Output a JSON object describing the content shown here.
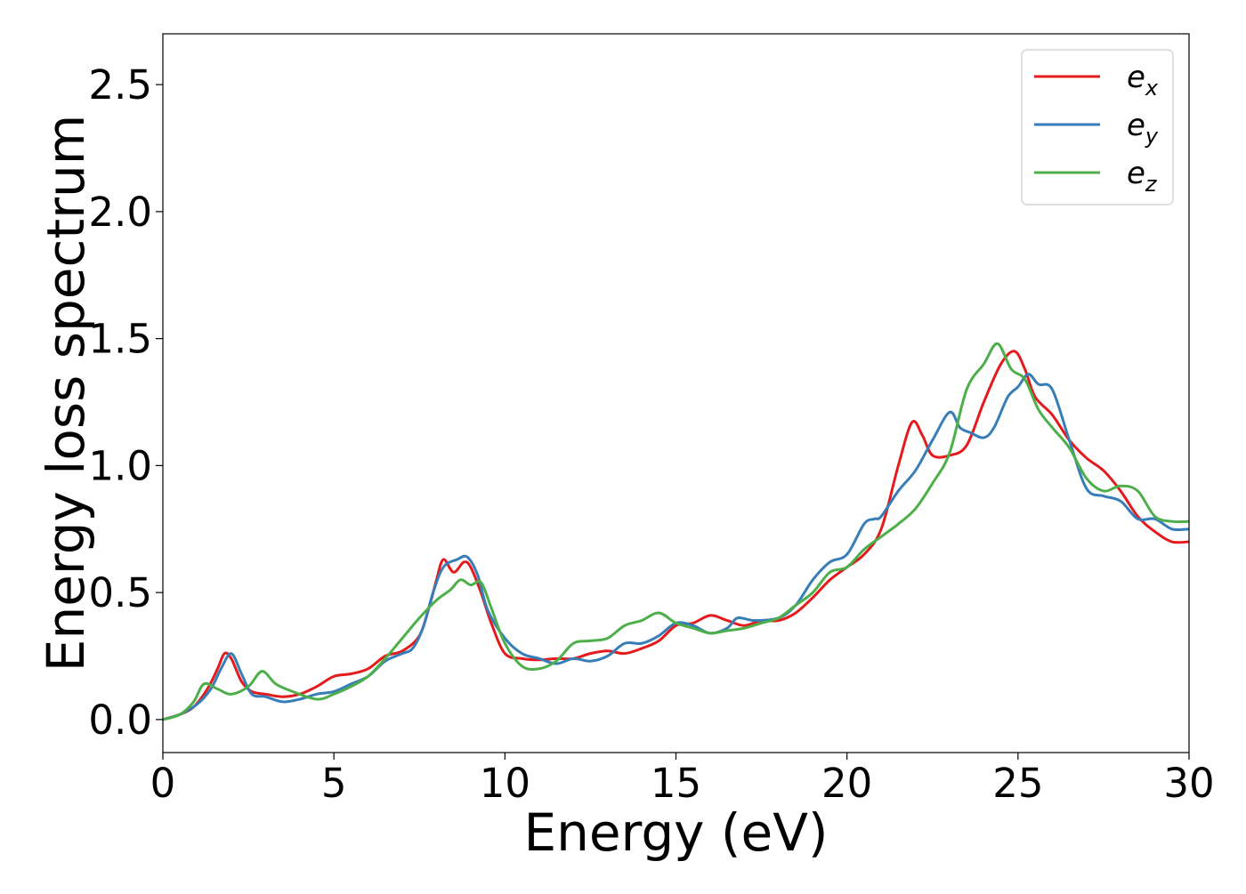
{
  "chart_data": {
    "type": "line",
    "title": "",
    "xlabel": "Energy (eV)",
    "ylabel": "Energy loss spectrum",
    "xlim": [
      0,
      30
    ],
    "ylim": [
      -0.13,
      2.7
    ],
    "xticks": [
      0,
      5,
      10,
      15,
      20,
      25,
      30
    ],
    "xtick_labels": [
      "0",
      "5",
      "10",
      "15",
      "20",
      "25",
      "30"
    ],
    "yticks": [
      0.0,
      0.5,
      1.0,
      1.5,
      2.0,
      2.5
    ],
    "ytick_labels": [
      "0.0",
      "0.5",
      "1.0",
      "1.5",
      "2.0",
      "2.5"
    ],
    "grid": false,
    "legend_position": "top-right",
    "series": [
      {
        "name": "e_x",
        "legend_base": "e",
        "legend_sub": "x",
        "color": "#e41a1c",
        "points": [
          [
            0,
            0
          ],
          [
            0.5,
            0.02
          ],
          [
            0.9,
            0.05
          ],
          [
            1.3,
            0.12
          ],
          [
            1.6,
            0.2
          ],
          [
            1.8,
            0.26
          ],
          [
            2.0,
            0.24
          ],
          [
            2.3,
            0.15
          ],
          [
            2.6,
            0.11
          ],
          [
            3.0,
            0.1
          ],
          [
            3.5,
            0.09
          ],
          [
            4.0,
            0.1
          ],
          [
            4.5,
            0.13
          ],
          [
            5.0,
            0.17
          ],
          [
            5.5,
            0.18
          ],
          [
            6.0,
            0.2
          ],
          [
            6.5,
            0.25
          ],
          [
            7.0,
            0.27
          ],
          [
            7.5,
            0.33
          ],
          [
            7.8,
            0.45
          ],
          [
            8.0,
            0.55
          ],
          [
            8.2,
            0.63
          ],
          [
            8.5,
            0.58
          ],
          [
            8.8,
            0.62
          ],
          [
            9.0,
            0.6
          ],
          [
            9.3,
            0.5
          ],
          [
            9.6,
            0.38
          ],
          [
            10.0,
            0.26
          ],
          [
            10.5,
            0.24
          ],
          [
            11.0,
            0.235
          ],
          [
            11.5,
            0.24
          ],
          [
            12.0,
            0.24
          ],
          [
            12.5,
            0.26
          ],
          [
            13.0,
            0.27
          ],
          [
            13.5,
            0.26
          ],
          [
            14.0,
            0.28
          ],
          [
            14.5,
            0.31
          ],
          [
            15.0,
            0.37
          ],
          [
            15.5,
            0.38
          ],
          [
            16.0,
            0.41
          ],
          [
            16.5,
            0.39
          ],
          [
            17.0,
            0.37
          ],
          [
            17.5,
            0.39
          ],
          [
            18.0,
            0.39
          ],
          [
            18.5,
            0.42
          ],
          [
            19.0,
            0.48
          ],
          [
            19.5,
            0.55
          ],
          [
            20.0,
            0.6
          ],
          [
            20.5,
            0.65
          ],
          [
            21.0,
            0.75
          ],
          [
            21.5,
            1.0
          ],
          [
            21.9,
            1.17
          ],
          [
            22.2,
            1.12
          ],
          [
            22.5,
            1.04
          ],
          [
            23.0,
            1.04
          ],
          [
            23.5,
            1.08
          ],
          [
            24.0,
            1.25
          ],
          [
            24.5,
            1.4
          ],
          [
            24.9,
            1.45
          ],
          [
            25.2,
            1.38
          ],
          [
            25.5,
            1.27
          ],
          [
            26.0,
            1.2
          ],
          [
            26.5,
            1.1
          ],
          [
            27.0,
            1.03
          ],
          [
            27.5,
            0.98
          ],
          [
            28.0,
            0.9
          ],
          [
            28.5,
            0.8
          ],
          [
            29.0,
            0.74
          ],
          [
            29.5,
            0.7
          ],
          [
            30.0,
            0.7
          ]
        ]
      },
      {
        "name": "e_y",
        "legend_base": "e",
        "legend_sub": "y",
        "color": "#377eb8",
        "points": [
          [
            0,
            0
          ],
          [
            0.5,
            0.02
          ],
          [
            1.0,
            0.06
          ],
          [
            1.4,
            0.12
          ],
          [
            1.7,
            0.2
          ],
          [
            2.0,
            0.26
          ],
          [
            2.3,
            0.18
          ],
          [
            2.6,
            0.1
          ],
          [
            3.0,
            0.09
          ],
          [
            3.5,
            0.07
          ],
          [
            4.0,
            0.08
          ],
          [
            4.5,
            0.1
          ],
          [
            5.0,
            0.11
          ],
          [
            5.5,
            0.14
          ],
          [
            6.0,
            0.17
          ],
          [
            6.5,
            0.23
          ],
          [
            7.0,
            0.26
          ],
          [
            7.3,
            0.28
          ],
          [
            7.6,
            0.36
          ],
          [
            7.9,
            0.5
          ],
          [
            8.2,
            0.6
          ],
          [
            8.6,
            0.63
          ],
          [
            8.9,
            0.64
          ],
          [
            9.2,
            0.57
          ],
          [
            9.5,
            0.43
          ],
          [
            10.0,
            0.32
          ],
          [
            10.5,
            0.26
          ],
          [
            11.0,
            0.24
          ],
          [
            11.5,
            0.22
          ],
          [
            12.0,
            0.24
          ],
          [
            12.5,
            0.23
          ],
          [
            13.0,
            0.25
          ],
          [
            13.5,
            0.3
          ],
          [
            14.0,
            0.3
          ],
          [
            14.5,
            0.33
          ],
          [
            15.0,
            0.38
          ],
          [
            15.5,
            0.37
          ],
          [
            16.0,
            0.34
          ],
          [
            16.5,
            0.36
          ],
          [
            16.8,
            0.4
          ],
          [
            17.3,
            0.39
          ],
          [
            18.0,
            0.4
          ],
          [
            18.5,
            0.45
          ],
          [
            19.0,
            0.55
          ],
          [
            19.5,
            0.62
          ],
          [
            20.0,
            0.65
          ],
          [
            20.5,
            0.77
          ],
          [
            20.8,
            0.79
          ],
          [
            21.0,
            0.8
          ],
          [
            21.5,
            0.9
          ],
          [
            22.0,
            0.98
          ],
          [
            22.5,
            1.1
          ],
          [
            23.0,
            1.21
          ],
          [
            23.3,
            1.15
          ],
          [
            23.6,
            1.13
          ],
          [
            24.0,
            1.11
          ],
          [
            24.3,
            1.15
          ],
          [
            24.7,
            1.27
          ],
          [
            25.0,
            1.31
          ],
          [
            25.3,
            1.36
          ],
          [
            25.6,
            1.32
          ],
          [
            26.0,
            1.3
          ],
          [
            26.5,
            1.1
          ],
          [
            27.0,
            0.91
          ],
          [
            27.5,
            0.88
          ],
          [
            28.0,
            0.86
          ],
          [
            28.5,
            0.79
          ],
          [
            29.0,
            0.79
          ],
          [
            29.5,
            0.75
          ],
          [
            30.0,
            0.75
          ]
        ]
      },
      {
        "name": "e_z",
        "legend_base": "e",
        "legend_sub": "z",
        "color": "#4daf4a",
        "points": [
          [
            0,
            0
          ],
          [
            0.5,
            0.02
          ],
          [
            0.9,
            0.07
          ],
          [
            1.2,
            0.14
          ],
          [
            1.6,
            0.12
          ],
          [
            2.0,
            0.1
          ],
          [
            2.5,
            0.13
          ],
          [
            2.9,
            0.19
          ],
          [
            3.3,
            0.14
          ],
          [
            3.8,
            0.11
          ],
          [
            4.5,
            0.08
          ],
          [
            5.0,
            0.1
          ],
          [
            5.5,
            0.13
          ],
          [
            6.0,
            0.17
          ],
          [
            6.5,
            0.24
          ],
          [
            7.0,
            0.32
          ],
          [
            7.5,
            0.4
          ],
          [
            8.0,
            0.47
          ],
          [
            8.4,
            0.51
          ],
          [
            8.7,
            0.55
          ],
          [
            9.0,
            0.53
          ],
          [
            9.3,
            0.54
          ],
          [
            9.6,
            0.44
          ],
          [
            10.0,
            0.3
          ],
          [
            10.5,
            0.21
          ],
          [
            11.0,
            0.2
          ],
          [
            11.5,
            0.23
          ],
          [
            12.0,
            0.3
          ],
          [
            12.5,
            0.31
          ],
          [
            13.0,
            0.32
          ],
          [
            13.5,
            0.37
          ],
          [
            14.0,
            0.39
          ],
          [
            14.5,
            0.42
          ],
          [
            15.0,
            0.38
          ],
          [
            15.5,
            0.36
          ],
          [
            16.0,
            0.34
          ],
          [
            16.5,
            0.35
          ],
          [
            17.0,
            0.36
          ],
          [
            17.5,
            0.38
          ],
          [
            18.0,
            0.4
          ],
          [
            18.5,
            0.45
          ],
          [
            19.0,
            0.5
          ],
          [
            19.5,
            0.58
          ],
          [
            20.0,
            0.6
          ],
          [
            20.5,
            0.67
          ],
          [
            21.0,
            0.72
          ],
          [
            21.5,
            0.77
          ],
          [
            22.0,
            0.83
          ],
          [
            22.5,
            0.93
          ],
          [
            23.0,
            1.05
          ],
          [
            23.5,
            1.3
          ],
          [
            24.0,
            1.4
          ],
          [
            24.4,
            1.48
          ],
          [
            24.8,
            1.38
          ],
          [
            25.2,
            1.34
          ],
          [
            25.6,
            1.22
          ],
          [
            26.0,
            1.15
          ],
          [
            26.5,
            1.07
          ],
          [
            27.0,
            0.95
          ],
          [
            27.5,
            0.9
          ],
          [
            28.0,
            0.92
          ],
          [
            28.5,
            0.9
          ],
          [
            29.0,
            0.8
          ],
          [
            29.5,
            0.78
          ],
          [
            30.0,
            0.78
          ]
        ]
      }
    ]
  }
}
